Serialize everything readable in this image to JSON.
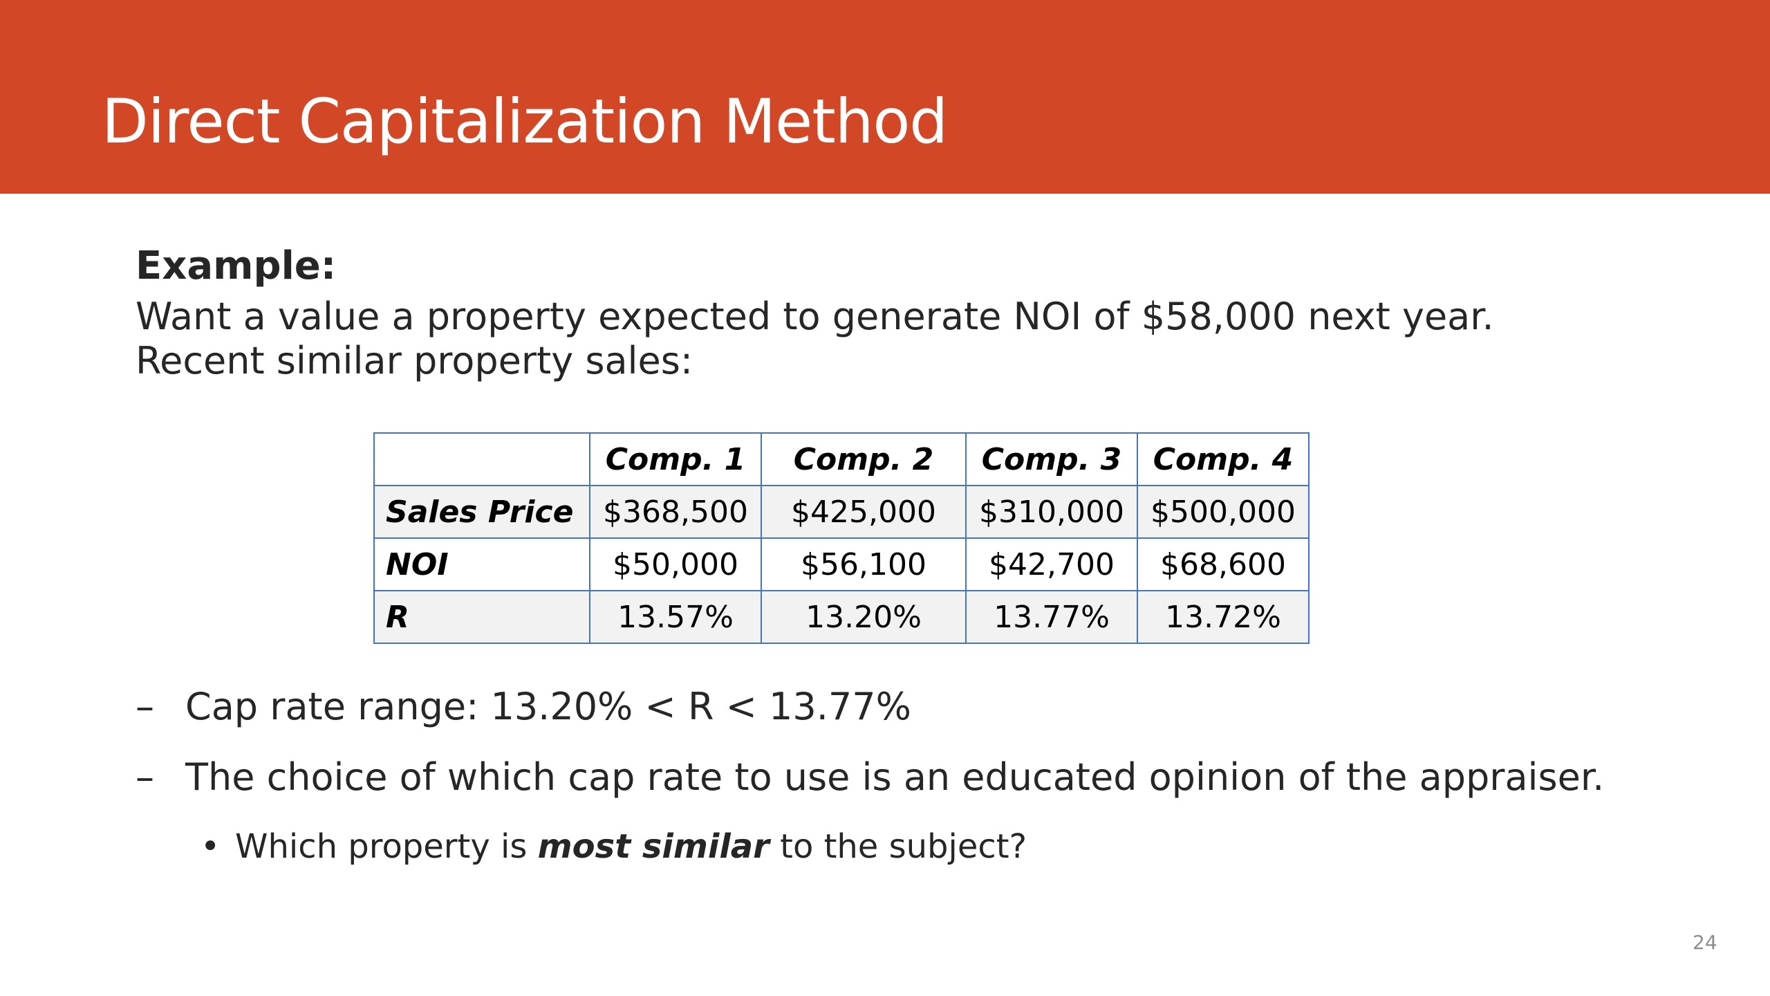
{
  "slide": {
    "title": "Direct Capitalization Method",
    "page_number": "24"
  },
  "content": {
    "example_label": "Example:",
    "intro": "Want a value a property expected to generate NOI of $58,000 next year. Recent similar property sales:"
  },
  "table": {
    "headers": [
      "",
      "Comp. 1",
      "Comp. 2",
      "Comp. 3",
      "Comp. 4"
    ],
    "rows": [
      {
        "label": "Sales Price",
        "values": [
          "$368,500",
          "$425,000",
          "$310,000",
          "$500,000"
        ]
      },
      {
        "label": "NOI",
        "values": [
          "$50,000",
          "$56,100",
          "$42,700",
          "$68,600"
        ]
      },
      {
        "label": "R",
        "values": [
          "13.57%",
          "13.20%",
          "13.77%",
          "13.72%"
        ]
      }
    ]
  },
  "bullets": {
    "dash_marker": "–",
    "items": [
      "Cap rate range: 13.20% < R < 13.77%",
      "The choice of which cap rate to use is an educated opinion of the appraiser."
    ],
    "sub_marker": "•",
    "sub_item": {
      "before": "Which property is ",
      "emphasis": "most similar",
      "after": " to the subject?"
    }
  },
  "colors": {
    "title_bar": "#d24726",
    "title_text": "#ffffff",
    "table_border": "#4472c4",
    "row_alt": "#f2f2f2",
    "body_text": "#262626"
  }
}
